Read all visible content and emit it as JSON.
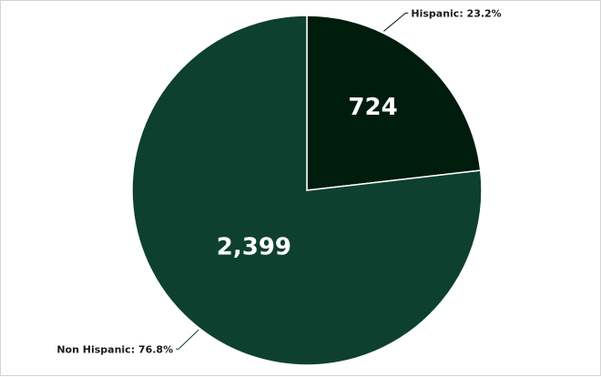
{
  "chart_data": {
    "type": "pie",
    "slices": [
      {
        "category": "Hispanic",
        "value": 724,
        "percent": 23.2,
        "value_label": "724",
        "label": "Hispanic: 23.2%",
        "color": "#001c0c"
      },
      {
        "category": "Non Hispanic",
        "value": 2399,
        "percent": 76.8,
        "value_label": "2,399",
        "label": "Non Hispanic: 76.8%",
        "color": "#0e4030"
      }
    ],
    "start_angle": "12 o'clock",
    "direction": "clockwise",
    "slice_border_color": "#ffffff",
    "legend": "none"
  }
}
